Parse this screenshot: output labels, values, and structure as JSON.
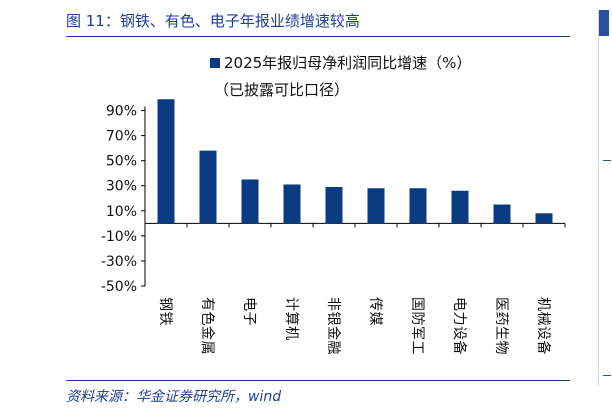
{
  "figure": {
    "title": "图 11：钢铁、有色、电子年报业绩增速较高",
    "source": "资料来源：华金证券研究所，wind"
  },
  "chart_data": {
    "type": "bar",
    "title": "",
    "legend": {
      "series_label": "2025年报归母净利润同比增速（%）",
      "note": "（已披露可比口径）",
      "placement": "top"
    },
    "xlabel": "",
    "ylabel": "",
    "categories": [
      "钢铁",
      "有色金属",
      "电子",
      "计算机",
      "非银金融",
      "传媒",
      "国防军工",
      "电力设备",
      "医药生物",
      "机械设备"
    ],
    "series": [
      {
        "name": "2025年报归母净利润同比增速（%）",
        "values": [
          99,
          58,
          35,
          31,
          29,
          28,
          28,
          26,
          15,
          8
        ]
      }
    ],
    "yticks": [
      "90%",
      "70%",
      "50%",
      "30%",
      "10%",
      "-10%",
      "-30%",
      "-50%"
    ],
    "ytick_values": [
      90,
      70,
      50,
      30,
      10,
      -10,
      -30,
      -50
    ],
    "ylim": [
      -50,
      100
    ],
    "grid": false,
    "bar_color": "#0a3a7f"
  }
}
